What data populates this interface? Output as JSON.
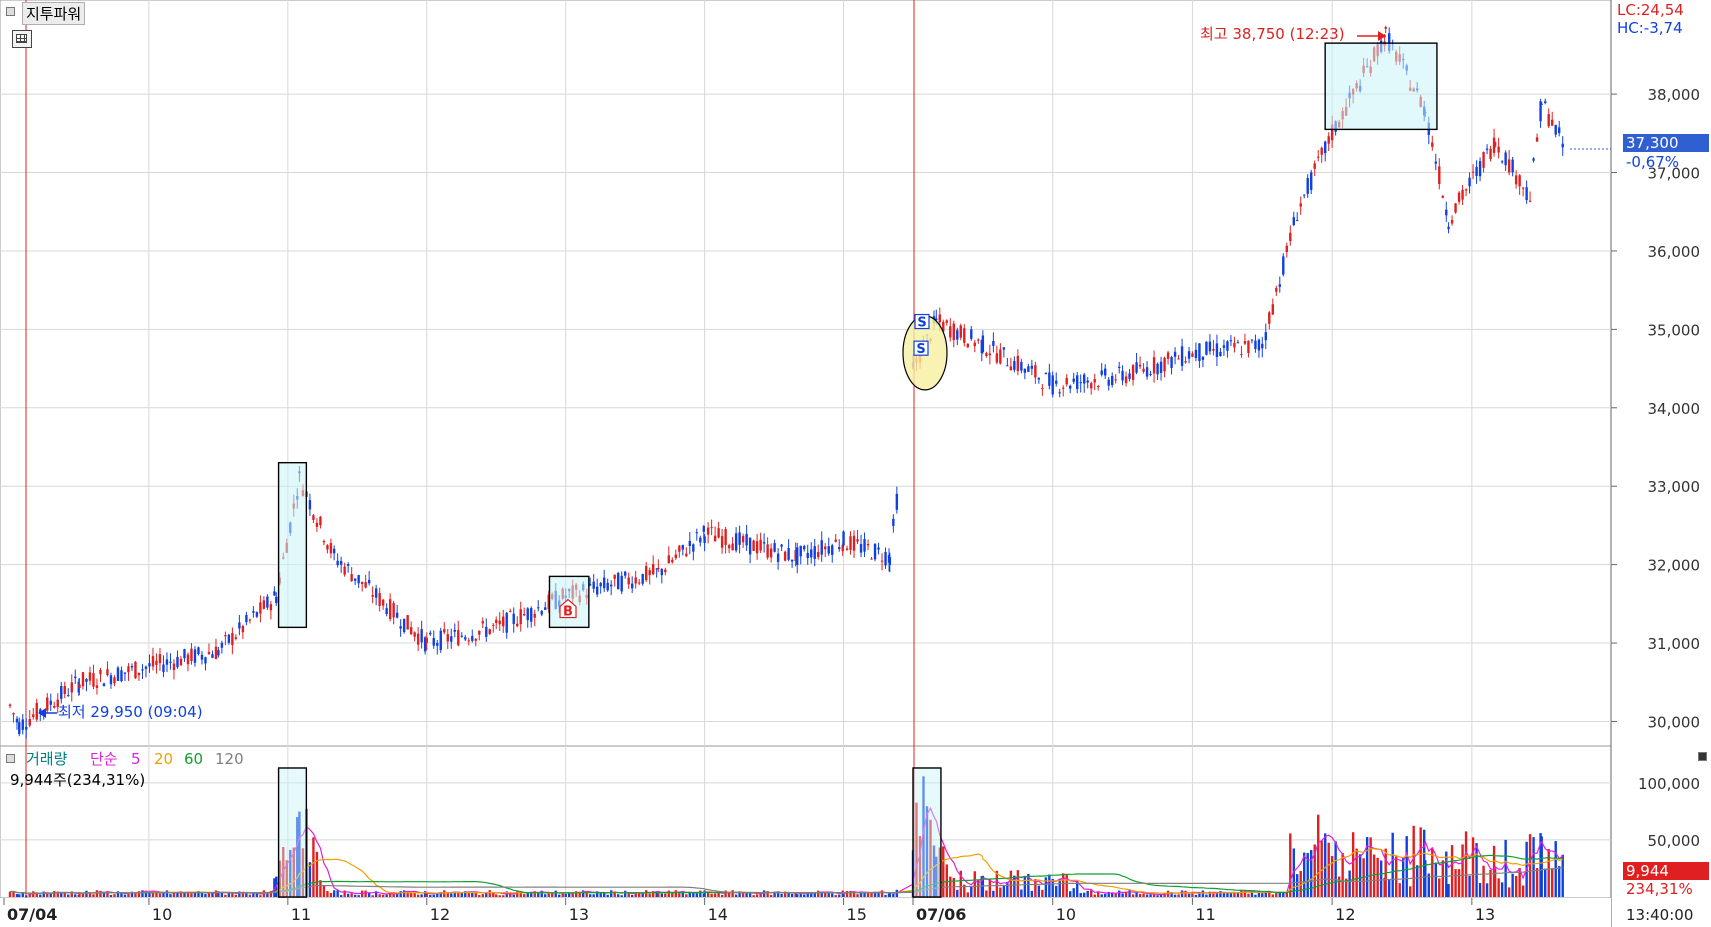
{
  "app": {
    "indicator_title": "지투파워"
  },
  "info": {
    "lc": "LC:24,54",
    "hc": "HC:-3,74"
  },
  "annotations": {
    "high": "최고 38,750 (12:23)",
    "low": "최저 29,950 (09:04)"
  },
  "current": {
    "price": "37,300",
    "change": "-0,67%",
    "volume": "9,944",
    "volume_pct": "234,31%"
  },
  "volume_legend": {
    "label": "거래량",
    "ma_type": "단순",
    "periods": [
      "5",
      "20",
      "60",
      "120"
    ],
    "value": "9,944주(234,31%)"
  },
  "price_axis": [
    "38,000",
    "37,000",
    "36,000",
    "35,000",
    "34,000",
    "33,000",
    "32,000",
    "31,000",
    "30,000"
  ],
  "volume_axis": [
    "100,000",
    "50,000"
  ],
  "time_axis": [
    "07/04",
    "10",
    "11",
    "12",
    "13",
    "14",
    "15",
    "07/06",
    "10",
    "11",
    "12",
    "13",
    "13:40:00"
  ],
  "signals": {
    "buy": "B",
    "sell": "S"
  },
  "colors": {
    "up": "#e02020",
    "down": "#1040e0",
    "highlight": "#c8f4f8",
    "sell_circle": "#f8f0a0",
    "ma5": "#e020e0",
    "ma20": "#f0a000",
    "ma60": "#10a030",
    "ma120": "#808080"
  },
  "chart_data": {
    "type": "candlestick",
    "ylim": [
      29700,
      39200
    ],
    "volume_ylim": [
      0,
      120000
    ],
    "key_points": [
      {
        "t": "07/04 09:00",
        "price": 30200
      },
      {
        "t": "07/04 09:04",
        "price": 29950
      },
      {
        "t": "07/04 09:30",
        "price": 30500
      },
      {
        "t": "07/04 10:30",
        "price": 30900
      },
      {
        "t": "07/04 10:55",
        "price": 31600
      },
      {
        "t": "07/04 11:05",
        "price": 33100
      },
      {
        "t": "07/04 11:20",
        "price": 32100
      },
      {
        "t": "07/04 12:00",
        "price": 31000
      },
      {
        "t": "07/04 12:30",
        "price": 31200
      },
      {
        "t": "07/04 13:00",
        "price": 31600
      },
      {
        "t": "07/04 13:40",
        "price": 31900
      },
      {
        "t": "07/04 14:00",
        "price": 32400
      },
      {
        "t": "07/04 14:40",
        "price": 32100
      },
      {
        "t": "07/04 15:00",
        "price": 32300
      },
      {
        "t": "07/04 15:20",
        "price": 32100
      },
      {
        "t": "07/06 09:00",
        "price": 34500
      },
      {
        "t": "07/06 09:10",
        "price": 35100
      },
      {
        "t": "07/06 09:30",
        "price": 34800
      },
      {
        "t": "07/06 10:00",
        "price": 34300
      },
      {
        "t": "07/06 10:30",
        "price": 34400
      },
      {
        "t": "07/06 11:00",
        "price": 34700
      },
      {
        "t": "07/06 11:30",
        "price": 34800
      },
      {
        "t": "07/06 11:45",
        "price": 36500
      },
      {
        "t": "07/06 12:00",
        "price": 37500
      },
      {
        "t": "07/06 12:23",
        "price": 38750
      },
      {
        "t": "07/06 12:40",
        "price": 37800
      },
      {
        "t": "07/06 12:50",
        "price": 36400
      },
      {
        "t": "07/06 13:10",
        "price": 37400
      },
      {
        "t": "07/06 13:25",
        "price": 36700
      },
      {
        "t": "07/06 13:30",
        "price": 37900
      },
      {
        "t": "07/06 13:40",
        "price": 37300
      }
    ],
    "volume_key_points": [
      {
        "t": "07/04 11:05",
        "volume": 92000
      },
      {
        "t": "07/06 09:05",
        "volume": 108000
      },
      {
        "t": "07/06 11:55",
        "volume": 75000
      },
      {
        "t": "07/06 12:15",
        "volume": 60000
      },
      {
        "t": "07/06 13:30",
        "volume": 38000
      }
    ]
  }
}
